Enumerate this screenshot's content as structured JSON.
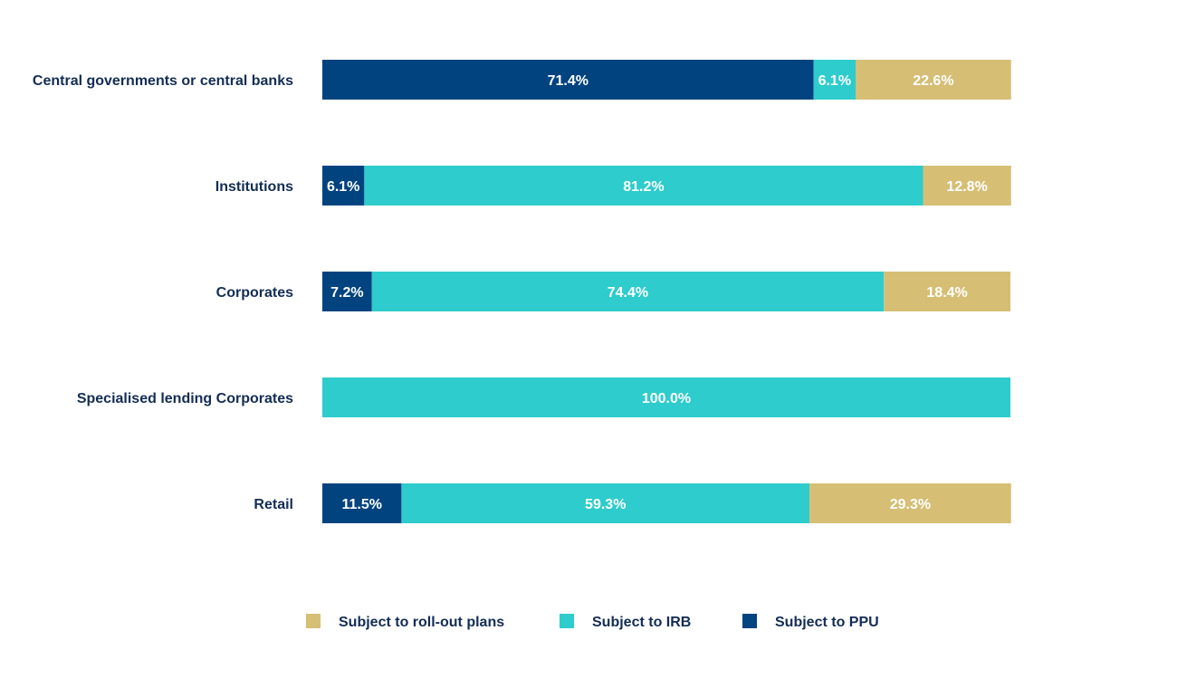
{
  "chart_data": {
    "type": "bar",
    "orientation": "horizontal",
    "stacked": true,
    "percent_stacked": true,
    "title": "",
    "xlabel": "",
    "ylabel": "",
    "xlim": [
      0,
      100
    ],
    "grid": false,
    "legend_position": "bottom",
    "categories": [
      "Central governments or central banks",
      "Institutions",
      "Corporates",
      "Specialised lending Corporates",
      "Retail"
    ],
    "series": [
      {
        "name": "Subject to PPU",
        "color": "#00437f",
        "values": [
          71.4,
          6.1,
          7.2,
          0.0,
          11.5
        ],
        "labels": [
          "71.4%",
          "6.1%",
          "7.2%",
          "",
          "11.5%"
        ]
      },
      {
        "name": "Subject to IRB",
        "color": "#2ecccc",
        "values": [
          6.1,
          81.2,
          74.4,
          100.0,
          59.3
        ],
        "labels": [
          "6.1%",
          "81.2%",
          "74.4%",
          "100.0%",
          "59.3%"
        ]
      },
      {
        "name": "Subject to roll-out plans",
        "color": "#d6be74",
        "values": [
          22.6,
          12.8,
          18.4,
          0.0,
          29.3
        ],
        "labels": [
          "22.6%",
          "12.8%",
          "18.4%",
          "",
          "29.3%"
        ]
      }
    ],
    "legend_order": [
      "Subject to roll-out plans",
      "Subject to IRB",
      "Subject to PPU"
    ]
  }
}
